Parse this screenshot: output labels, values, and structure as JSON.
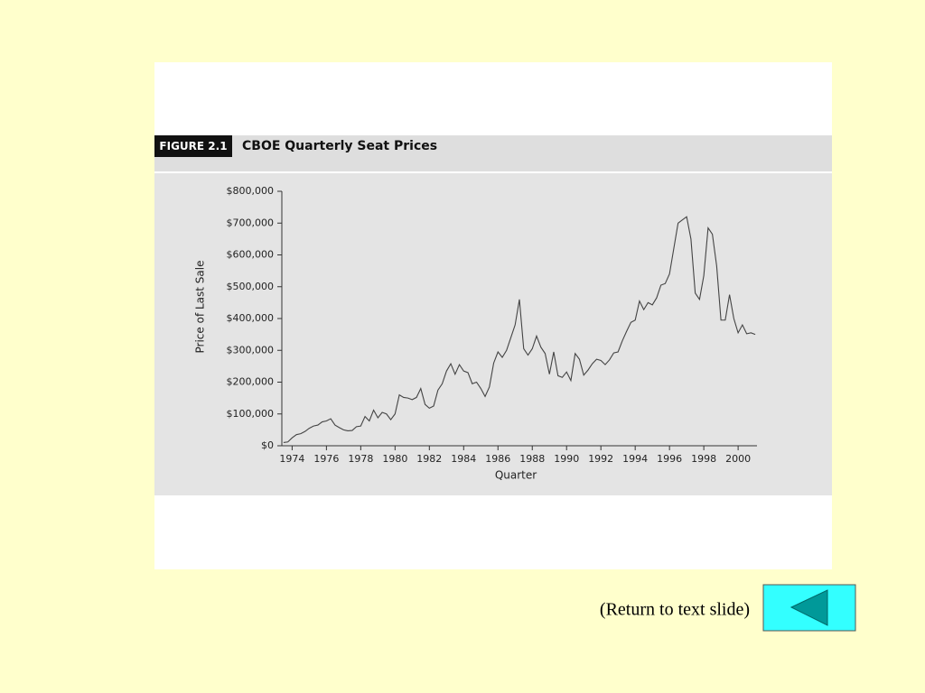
{
  "chart_data": {
    "type": "line",
    "figure_label": "FIGURE 2.1",
    "title": "CBOE Quarterly Seat Prices",
    "xlabel": "Quarter",
    "ylabel": "Price of Last Sale",
    "x": [
      1973.5,
      1973.75,
      1974,
      1974.25,
      1974.5,
      1974.75,
      1975,
      1975.25,
      1975.5,
      1975.75,
      1976,
      1976.25,
      1976.5,
      1976.75,
      1977,
      1977.25,
      1977.5,
      1977.75,
      1978,
      1978.25,
      1978.5,
      1978.75,
      1979,
      1979.25,
      1979.5,
      1979.75,
      1980,
      1980.25,
      1980.5,
      1980.75,
      1981,
      1981.25,
      1981.5,
      1981.75,
      1982,
      1982.25,
      1982.5,
      1982.75,
      1983,
      1983.25,
      1983.5,
      1983.75,
      1984,
      1984.25,
      1984.5,
      1984.75,
      1985,
      1985.25,
      1985.5,
      1985.75,
      1986,
      1986.25,
      1986.5,
      1986.75,
      1987,
      1987.25,
      1987.5,
      1987.75,
      1988,
      1988.25,
      1988.5,
      1988.75,
      1989,
      1989.25,
      1989.5,
      1989.75,
      1990,
      1990.25,
      1990.5,
      1990.75,
      1991,
      1991.25,
      1991.5,
      1991.75,
      1992,
      1992.25,
      1992.5,
      1992.75,
      1993,
      1993.25,
      1993.5,
      1993.75,
      1994,
      1994.25,
      1994.5,
      1994.75,
      1995,
      1995.25,
      1995.5,
      1995.75,
      1996,
      1996.25,
      1996.5,
      1996.75,
      1997,
      1997.25,
      1997.5,
      1997.75,
      1998,
      1998.25,
      1998.5,
      1998.75,
      1999,
      1999.25,
      1999.5,
      1999.75,
      2000,
      2000.25,
      2000.5,
      2000.75,
      2001
    ],
    "series": [
      {
        "name": "Price of Last Sale",
        "color": "#444444",
        "values": [
          10000,
          12000,
          25000,
          35000,
          38000,
          45000,
          55000,
          62000,
          65000,
          75000,
          78000,
          85000,
          65000,
          57000,
          50000,
          47000,
          48000,
          60000,
          62000,
          92000,
          78000,
          112000,
          88000,
          105000,
          100000,
          82000,
          100000,
          160000,
          152000,
          150000,
          145000,
          152000,
          180000,
          130000,
          118000,
          125000,
          175000,
          195000,
          235000,
          258000,
          225000,
          255000,
          235000,
          230000,
          195000,
          200000,
          180000,
          155000,
          185000,
          260000,
          295000,
          278000,
          300000,
          340000,
          380000,
          460000,
          305000,
          285000,
          305000,
          345000,
          310000,
          290000,
          225000,
          295000,
          220000,
          215000,
          232000,
          205000,
          290000,
          272000,
          222000,
          238000,
          258000,
          272000,
          268000,
          255000,
          270000,
          292000,
          295000,
          330000,
          360000,
          388000,
          395000,
          455000,
          428000,
          450000,
          443000,
          465000,
          505000,
          510000,
          540000,
          620000,
          700000,
          710000,
          720000,
          650000,
          480000,
          460000,
          535000,
          685000,
          665000,
          565000,
          395000,
          395000,
          475000,
          400000,
          355000,
          380000,
          352000,
          355000,
          350000
        ]
      }
    ],
    "xlim": [
      1973.4,
      2001.1
    ],
    "xticks": [
      1974,
      1976,
      1978,
      1980,
      1982,
      1984,
      1986,
      1988,
      1990,
      1992,
      1994,
      1996,
      1998,
      2000
    ],
    "ylim": [
      0,
      800000
    ],
    "yticks": [
      {
        "value": 0,
        "label": "$0"
      },
      {
        "value": 100000,
        "label": "$100,000"
      },
      {
        "value": 200000,
        "label": "$200,000"
      },
      {
        "value": 300000,
        "label": "$300,000"
      },
      {
        "value": 400000,
        "label": "$400,000"
      },
      {
        "value": 500000,
        "label": "$500,000"
      },
      {
        "value": 600000,
        "label": "$600,000"
      },
      {
        "value": 700000,
        "label": "$700,000"
      },
      {
        "value": 800000,
        "label": "$800,000"
      }
    ],
    "grid": false
  },
  "nav": {
    "return_link": "(Return to text slide)"
  }
}
